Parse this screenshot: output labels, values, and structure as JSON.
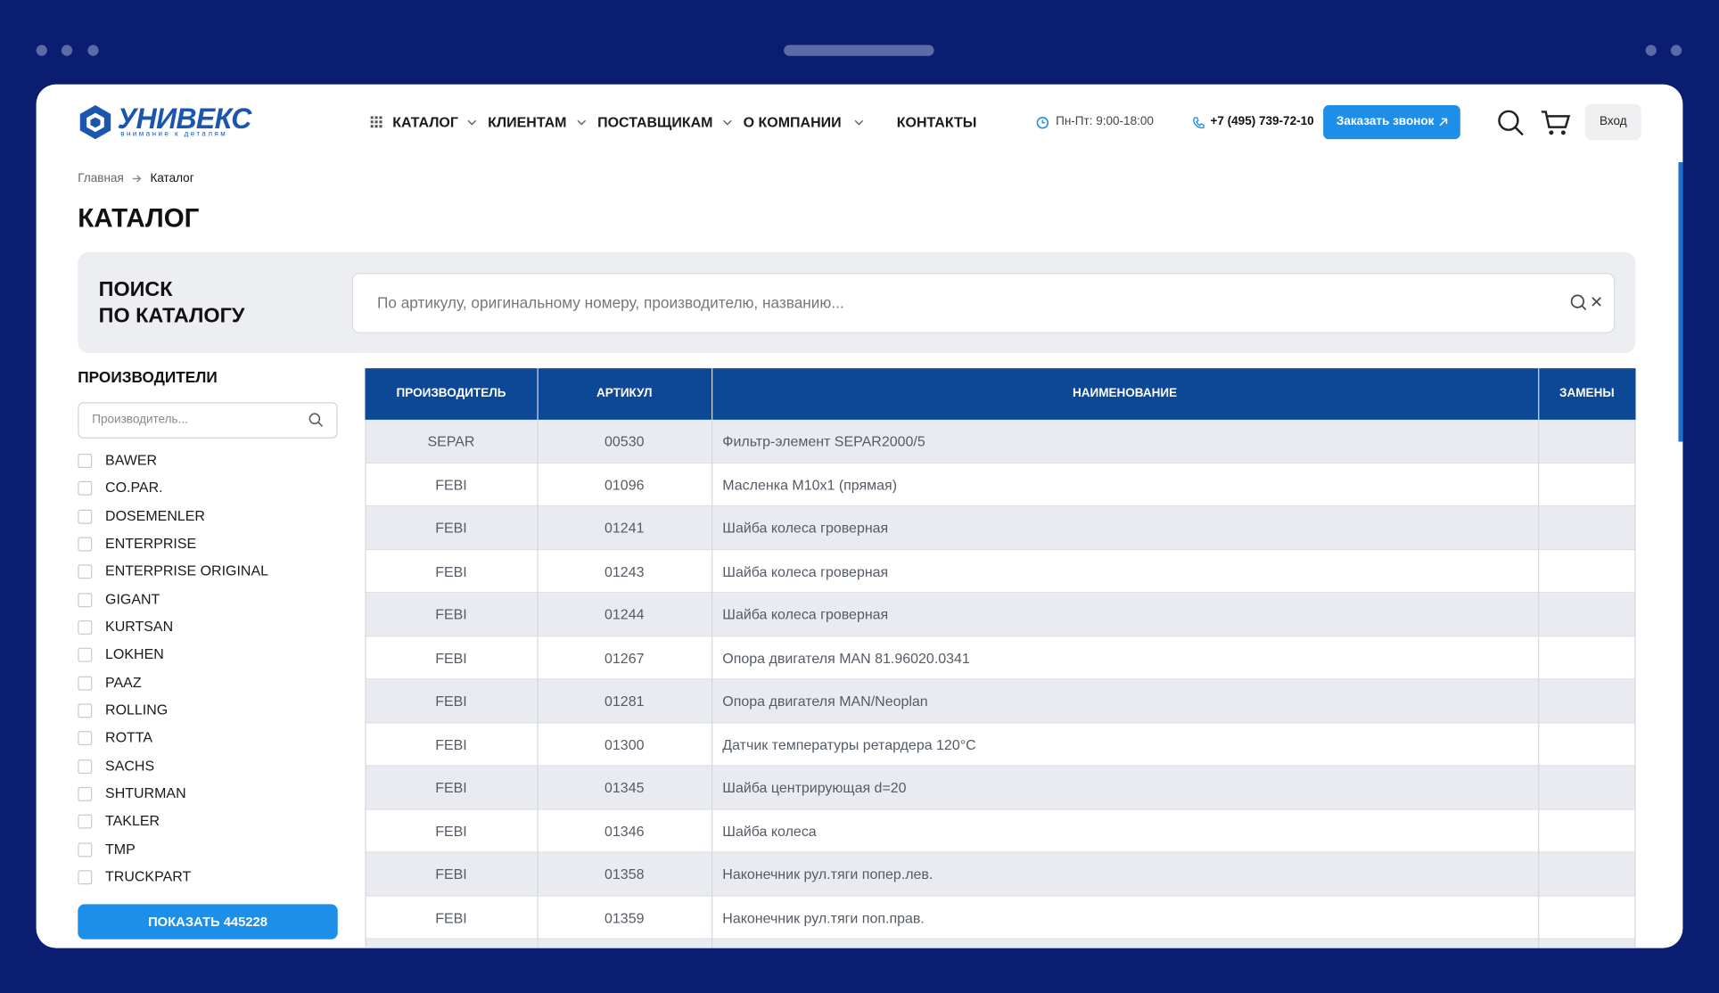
{
  "header": {
    "logo": "УНИВЕКС",
    "tagline": "внимание к деталям",
    "nav": [
      "КАТАЛОГ",
      "КЛИЕНТАМ",
      "ПОСТАВЩИКАМ",
      "О КОМПАНИИ",
      "КОНТАКТЫ"
    ],
    "hours": "Пн-Пт: 9:00-18:00",
    "phone": "+7 (495) 739-72-10",
    "callback": "Заказать звонок",
    "login": "Вход"
  },
  "breadcrumbs": [
    "Главная",
    "Каталог"
  ],
  "title": "КАТАЛОГ",
  "search": {
    "label_lines": [
      "ПОИСК",
      "ПО КАТАЛОГУ"
    ],
    "placeholder": "По артикулу, оригинальному номеру, производителю, названию..."
  },
  "filters": {
    "title": "ПРОИЗВОДИТЕЛИ",
    "placeholder": "Производитель...",
    "manufacturers": [
      "BAWER",
      "CO.PAR.",
      "DOSEMENLER",
      "ENTERPRISE",
      "ENTERPRISE ORIGINAL",
      "GIGANT",
      "KURTSAN",
      "LOKHEN",
      "PAAZ",
      "ROLLING",
      "ROTTA",
      "SACHS",
      "SHTURMAN",
      "TAKLER",
      "TMP",
      "TRUCKPART"
    ],
    "button": "ПОКАЗАТЬ 445228"
  },
  "table": {
    "columns": [
      "ПРОИЗВОДИТЕЛЬ",
      "АРТИКУЛ",
      "НАИМЕНОВАНИЕ",
      "ЗАМЕНЫ"
    ],
    "rows": [
      [
        "SEPAR",
        "00530",
        "Фильтр-элемент SEPAR2000/5"
      ],
      [
        "FEBI",
        "01096",
        "Масленка М10х1 (прямая)"
      ],
      [
        "FEBI",
        "01241",
        "Шайба колеса гроверная"
      ],
      [
        "FEBI",
        "01243",
        "Шайба колеса гроверная"
      ],
      [
        "FEBI",
        "01244",
        "Шайба колеса гроверная"
      ],
      [
        "FEBI",
        "01267",
        "Опора двигателя MAN 81.96020.0341"
      ],
      [
        "FEBI",
        "01281",
        "Опора двигателя MAN/Neoplan"
      ],
      [
        "FEBI",
        "01300",
        "Датчик температуры ретардера 120°C"
      ],
      [
        "FEBI",
        "01345",
        "Шайба центрирующая d=20"
      ],
      [
        "FEBI",
        "01346",
        "Шайба колеса"
      ],
      [
        "FEBI",
        "01358",
        "Наконечник рул.тяги попер.лев."
      ],
      [
        "FEBI",
        "01359",
        "Наконечник рул.тяги поп.прав."
      ]
    ]
  }
}
